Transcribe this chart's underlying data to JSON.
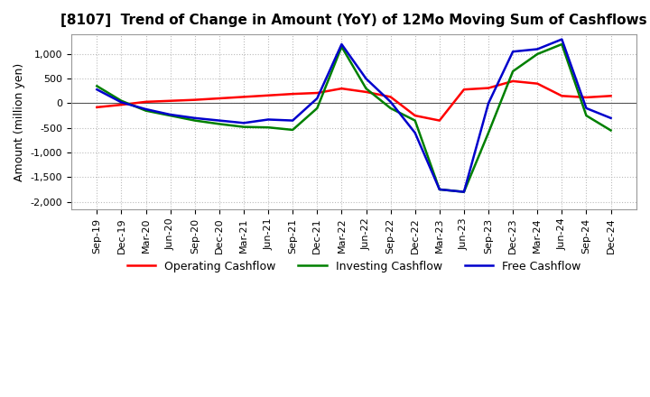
{
  "title": "[8107]  Trend of Change in Amount (YoY) of 12Mo Moving Sum of Cashflows",
  "ylabel": "Amount (million yen)",
  "background_color": "#ffffff",
  "plot_bg_color": "#ffffff",
  "grid_color": "#bbbbbb",
  "xlabels": [
    "Sep-19",
    "Dec-19",
    "Mar-20",
    "Jun-20",
    "Sep-20",
    "Dec-20",
    "Mar-21",
    "Jun-21",
    "Sep-21",
    "Dec-21",
    "Mar-22",
    "Jun-22",
    "Sep-22",
    "Dec-22",
    "Mar-23",
    "Jun-23",
    "Sep-23",
    "Dec-23",
    "Mar-24",
    "Jun-24",
    "Sep-24",
    "Dec-24"
  ],
  "operating_cashflow": [
    -80,
    -30,
    30,
    50,
    70,
    100,
    130,
    160,
    190,
    210,
    300,
    230,
    130,
    -250,
    -350,
    280,
    310,
    450,
    400,
    150,
    120,
    150
  ],
  "investing_cashflow": [
    350,
    50,
    -150,
    -250,
    -350,
    -420,
    -480,
    -490,
    -540,
    -100,
    1150,
    300,
    -100,
    -350,
    -1750,
    -1800,
    -600,
    650,
    1000,
    1200,
    -250,
    -550
  ],
  "free_cashflow": [
    280,
    20,
    -120,
    -230,
    -300,
    -350,
    -400,
    -330,
    -350,
    100,
    1200,
    500,
    30,
    -600,
    -1750,
    -1800,
    0,
    1050,
    1100,
    1300,
    -100,
    -300
  ],
  "ylim": [
    -2150,
    1400
  ],
  "yticks": [
    -2000,
    -1500,
    -1000,
    -500,
    0,
    500,
    1000
  ],
  "operating_color": "#ff0000",
  "investing_color": "#008000",
  "free_color": "#0000cc",
  "title_fontsize": 11,
  "axis_label_fontsize": 9,
  "tick_fontsize": 8,
  "legend_fontsize": 9,
  "linewidth": 1.8
}
